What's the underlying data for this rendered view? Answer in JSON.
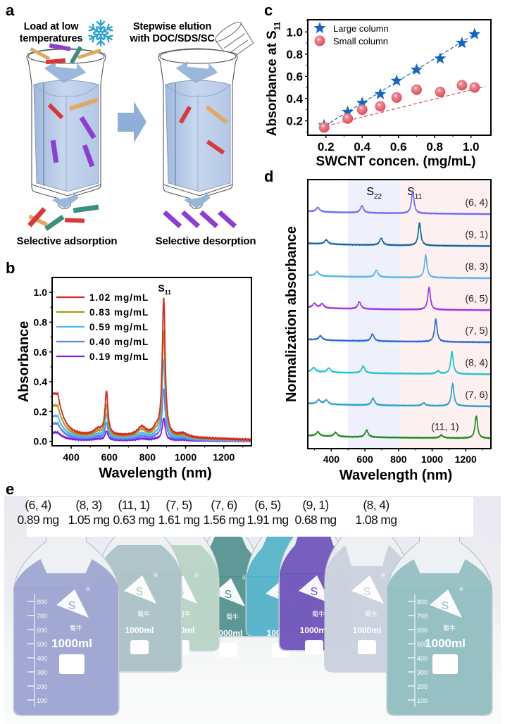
{
  "figure": {
    "panels": {
      "a": "a",
      "b": "b",
      "c": "c",
      "d": "d",
      "e": "e"
    }
  },
  "panel_a": {
    "step1_title_line1": "Load at low",
    "step1_title_line2": "temperatures",
    "step2_title_line1": "Stepwise elution",
    "step2_title_line2": "with DOC/SDS/SC",
    "step1_caption": "Selective adsorption",
    "step2_caption": "Selective desorption",
    "icons": [
      "snowflake-icon",
      "pouring-beaker-icon",
      "column-icon",
      "arrow-right-icon",
      "arrow-down-icon",
      "nanotube-icon"
    ],
    "colors": {
      "column_fill": "#b7cbe6",
      "arrow": "#8eb0d8",
      "snowflake": "#2aa3d0",
      "tube_red": "#d9383c",
      "tube_orange": "#e0a96a",
      "tube_purple": "#8b3fd0",
      "tube_teal": "#3b8f80"
    }
  },
  "chart_data": [
    {
      "id": "b",
      "type": "line",
      "title": "",
      "xlabel": "Wavelength (nm)",
      "ylabel": "Absorbance",
      "xlim": [
        300,
        1345
      ],
      "ylim": [
        -0.03,
        1.1
      ],
      "xticks": [
        400,
        600,
        800,
        1000,
        1200
      ],
      "yticks": [
        0.0,
        0.2,
        0.4,
        0.6,
        0.8,
        1.0
      ],
      "xtick_labels": [
        "400",
        "600",
        "800",
        "1000",
        "1200"
      ],
      "ytick_labels": [
        "0.0",
        "0.2",
        "0.4",
        "0.6",
        "0.8",
        "1.0"
      ],
      "annotation": {
        "text": "S",
        "sub": "11",
        "x": 885
      },
      "legend": "top-left",
      "series": [
        {
          "name": "1.02 mg/mL",
          "color": "#d62728",
          "peak_s11": 0.98,
          "peak_s22": 0.34,
          "uv": 0.32,
          "shoulder_770": 0.11,
          "baseline": 0.05
        },
        {
          "name": "0.83 mg/mL",
          "color": "#a59b1a",
          "peak_s11": 0.76,
          "peak_s22": 0.25,
          "uv": 0.24,
          "shoulder_770": 0.09,
          "baseline": 0.04
        },
        {
          "name": "0.59 mg/mL",
          "color": "#4db8f0",
          "peak_s11": 0.56,
          "peak_s22": 0.19,
          "uv": 0.17,
          "shoulder_770": 0.06,
          "baseline": 0.03
        },
        {
          "name": "0.40 mg/mL",
          "color": "#5b7ff0",
          "peak_s11": 0.36,
          "peak_s22": 0.13,
          "uv": 0.12,
          "shoulder_770": 0.04,
          "baseline": 0.02
        },
        {
          "name": "0.19 mg/mL",
          "color": "#7b1fe0",
          "peak_s11": 0.16,
          "peak_s22": 0.07,
          "uv": 0.06,
          "shoulder_770": 0.02,
          "baseline": 0.01
        }
      ]
    },
    {
      "id": "c",
      "type": "scatter",
      "title": "",
      "xlabel": "SWCNT concen. (mg/mL)",
      "ylabel": "Absorbance at S",
      "ylabel_sub": "11",
      "xlim": [
        0.1,
        1.11
      ],
      "ylim": [
        0.07,
        1.11
      ],
      "xticks": [
        0.2,
        0.4,
        0.6,
        0.8,
        1.0
      ],
      "yticks": [
        0.2,
        0.4,
        0.6,
        0.8,
        1.0
      ],
      "xtick_labels": [
        "0.2",
        "0.4",
        "0.6",
        "0.8",
        "1.0"
      ],
      "ytick_labels": [
        "0.2",
        "0.4",
        "0.6",
        "0.8",
        "1.0"
      ],
      "legend": "top-left",
      "series": [
        {
          "name": "Large column",
          "marker": "star",
          "color": "#1565c0",
          "x": [
            0.19,
            0.32,
            0.4,
            0.5,
            0.59,
            0.7,
            0.83,
            0.95,
            1.02
          ],
          "y": [
            0.16,
            0.28,
            0.36,
            0.44,
            0.56,
            0.66,
            0.76,
            0.9,
            0.98
          ],
          "fit": {
            "x": [
              0.17,
              1.03
            ],
            "y": [
              0.13,
              0.99
            ]
          }
        },
        {
          "name": "Small column",
          "marker": "sphere",
          "color": "#e04a5a",
          "x": [
            0.19,
            0.32,
            0.4,
            0.5,
            0.59,
            0.7,
            0.83,
            0.95,
            1.02
          ],
          "y": [
            0.14,
            0.22,
            0.3,
            0.33,
            0.41,
            0.48,
            0.46,
            0.52,
            0.5
          ],
          "fit": {
            "x": [
              0.17,
              1.08
            ],
            "y": [
              0.14,
              0.51
            ]
          }
        }
      ]
    },
    {
      "id": "d",
      "type": "line",
      "title": "",
      "xlabel": "Wavelength (nm)",
      "ylabel": "Normalization absorbance",
      "xlim": [
        260,
        1350
      ],
      "xticks": [
        400,
        600,
        800,
        1000,
        1200
      ],
      "xtick_labels": [
        "400",
        "600",
        "800",
        "1000",
        "1200"
      ],
      "regions": [
        {
          "label": "S",
          "sub": "22",
          "from": 500,
          "to": 810,
          "color": "#eef0fb"
        },
        {
          "label": "S",
          "sub": "11",
          "from": 810,
          "to": 1350,
          "color": "#fcf0f0"
        }
      ],
      "series": [
        {
          "name": "(6, 4)",
          "color": "#6c6cf0",
          "s11": 885,
          "s22": 582,
          "extra": [
            320
          ]
        },
        {
          "name": "(9, 1)",
          "color": "#14639e",
          "s11": 925,
          "s22": 697,
          "extra": [
            370
          ]
        },
        {
          "name": "(8, 3)",
          "color": "#58b4ee",
          "s11": 962,
          "s22": 668,
          "extra": [
            315
          ]
        },
        {
          "name": "(6, 5)",
          "color": "#9a34e8",
          "s11": 982,
          "s22": 567,
          "extra": [
            300,
            345
          ]
        },
        {
          "name": "(7, 5)",
          "color": "#2e67d4",
          "s11": 1022,
          "s22": 645,
          "extra": [
            335
          ]
        },
        {
          "name": "(8, 4)",
          "color": "#1ec6c6",
          "s11": 1118,
          "s22": 590,
          "extra": [
            295,
            385,
            1035
          ]
        },
        {
          "name": "(7, 6)",
          "color": "#2f9ec8",
          "s11": 1122,
          "s22": 648,
          "extra": [
            325,
            370,
            950
          ]
        },
        {
          "name": "(11, 1)",
          "color": "#1a8a1a",
          "s11": 1263,
          "s22": 610,
          "extra": [
            320,
            425,
            1055
          ]
        }
      ]
    }
  ],
  "panel_e": {
    "bottles": [
      {
        "chirality": "(6, 4)",
        "mass": "0.89 mg",
        "color": "#9aa2cf"
      },
      {
        "chirality": "(8, 3)",
        "mass": "1.05 mg",
        "color": "#a9c0c4"
      },
      {
        "chirality": "(11, 1)",
        "mass": "0.63 mg",
        "color": "#b6d2c3"
      },
      {
        "chirality": "(7, 5)",
        "mass": "1.61 mg",
        "color": "#4f8e8d"
      },
      {
        "chirality": "(7, 6)",
        "mass": "1.56 mg",
        "color": "#4fb0c8"
      },
      {
        "chirality": "(6, 5)",
        "mass": "1.91 mg",
        "color": "#6a4fb8"
      },
      {
        "chirality": "(9, 1)",
        "mass": "0.68 mg",
        "color": "#c9cfdc"
      },
      {
        "chirality": "(8, 4)",
        "mass": "1.08 mg",
        "color": "#8fbcc0"
      }
    ],
    "bottle_text": "1000ml",
    "brand_text": "蜀牛",
    "brand_logo": "S",
    "registered": "®",
    "cap_color": "#1f3fc0",
    "graduations": [
      "800",
      "700",
      "600",
      "500",
      "400",
      "300",
      "200",
      "100"
    ]
  }
}
